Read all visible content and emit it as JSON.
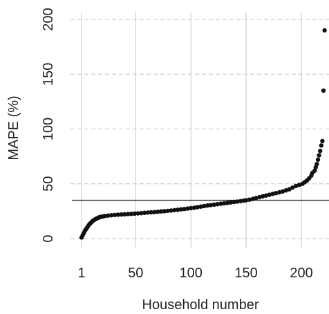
{
  "chart_data": {
    "type": "scatter",
    "xlabel": "Household number",
    "ylabel": "MAPE (%)",
    "xlim": [
      1,
      225
    ],
    "ylim": [
      0,
      200
    ],
    "xticks": [
      1,
      50,
      100,
      150,
      200
    ],
    "xtick_labels": [
      "1",
      "50",
      "100",
      "150",
      "200"
    ],
    "yticks": [
      0,
      50,
      100,
      150,
      200
    ],
    "ytick_labels": [
      "0",
      "50",
      "100",
      "150",
      "200"
    ],
    "grid": true,
    "reference_line_y": 35,
    "point_color": "#111111",
    "series": [
      {
        "points": [
          [
            1,
            1
          ],
          [
            2,
            3
          ],
          [
            3,
            5
          ],
          [
            4,
            7
          ],
          [
            5,
            8.5
          ],
          [
            6,
            10
          ],
          [
            7,
            11.5
          ],
          [
            8,
            13
          ],
          [
            9,
            14
          ],
          [
            10,
            15
          ],
          [
            11,
            16
          ],
          [
            12,
            16.8
          ],
          [
            13,
            17.4
          ],
          [
            14,
            18
          ],
          [
            15,
            18.5
          ],
          [
            16,
            19
          ],
          [
            17,
            19.4
          ],
          [
            18,
            19.7
          ],
          [
            19,
            20
          ],
          [
            20,
            20.2
          ],
          [
            22,
            20.6
          ],
          [
            25,
            21
          ],
          [
            28,
            21.3
          ],
          [
            31,
            21.6
          ],
          [
            34,
            21.8
          ],
          [
            37,
            22
          ],
          [
            40,
            22.2
          ],
          [
            43,
            22.4
          ],
          [
            46,
            22.6
          ],
          [
            49,
            22.8
          ],
          [
            52,
            23
          ],
          [
            55,
            23.2
          ],
          [
            58,
            23.5
          ],
          [
            61,
            23.8
          ],
          [
            64,
            24
          ],
          [
            67,
            24.2
          ],
          [
            70,
            24.5
          ],
          [
            73,
            24.8
          ],
          [
            76,
            25
          ],
          [
            79,
            25.3
          ],
          [
            82,
            25.6
          ],
          [
            85,
            26
          ],
          [
            88,
            26.3
          ],
          [
            91,
            26.7
          ],
          [
            94,
            27
          ],
          [
            97,
            27.4
          ],
          [
            100,
            27.8
          ],
          [
            103,
            28.2
          ],
          [
            106,
            28.7
          ],
          [
            109,
            29.2
          ],
          [
            112,
            29.7
          ],
          [
            115,
            30.2
          ],
          [
            118,
            30.6
          ],
          [
            121,
            31
          ],
          [
            124,
            31.4
          ],
          [
            127,
            31.8
          ],
          [
            130,
            32.2
          ],
          [
            133,
            32.6
          ],
          [
            136,
            33
          ],
          [
            139,
            33.4
          ],
          [
            142,
            33.8
          ],
          [
            145,
            34.2
          ],
          [
            148,
            34.7
          ],
          [
            150,
            35
          ],
          [
            153,
            35.5
          ],
          [
            156,
            36.2
          ],
          [
            159,
            37
          ],
          [
            162,
            37.8
          ],
          [
            165,
            38.6
          ],
          [
            168,
            39.3
          ],
          [
            171,
            40
          ],
          [
            174,
            40.8
          ],
          [
            177,
            41.5
          ],
          [
            180,
            42.2
          ],
          [
            183,
            43
          ],
          [
            186,
            44
          ],
          [
            189,
            45
          ],
          [
            192,
            46.5
          ],
          [
            195,
            48
          ],
          [
            198,
            49
          ],
          [
            201,
            50
          ],
          [
            203,
            51.5
          ],
          [
            205,
            53
          ],
          [
            207,
            55
          ],
          [
            209,
            57.5
          ],
          [
            210,
            60
          ],
          [
            212,
            62
          ],
          [
            213,
            65
          ],
          [
            214,
            68
          ],
          [
            215,
            72
          ],
          [
            216,
            76
          ],
          [
            217,
            80
          ],
          [
            218,
            85
          ],
          [
            219,
            89
          ],
          [
            220,
            135
          ],
          [
            221,
            190
          ]
        ]
      }
    ]
  }
}
